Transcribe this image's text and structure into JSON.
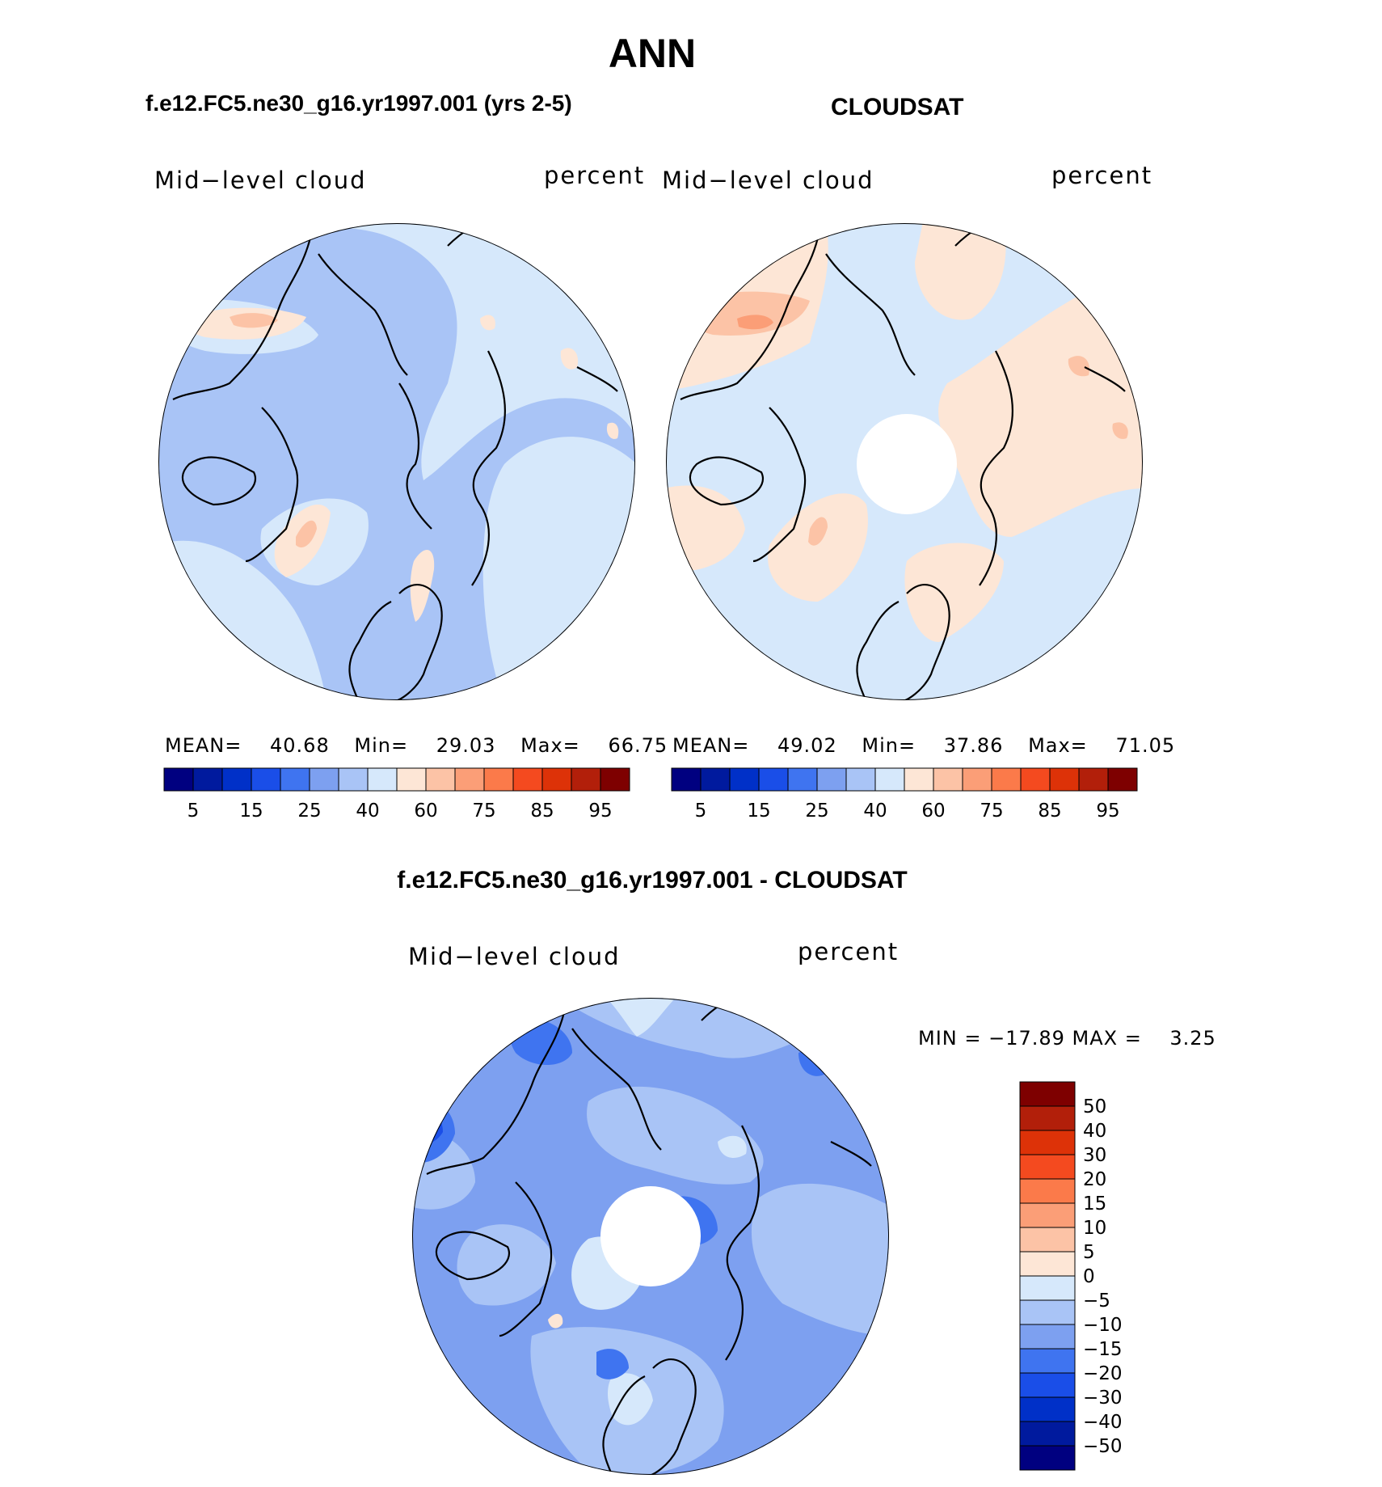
{
  "page_title": "ANN",
  "colors": {
    "seq": [
      "#000080",
      "#001a9e",
      "#0030c8",
      "#1a4ee8",
      "#3f74f0",
      "#7da0f0",
      "#a9c4f6",
      "#d6e8fb",
      "#fde6d6",
      "#fcc3a6",
      "#fb9e77",
      "#fb7a4a",
      "#f44a1f",
      "#dd3208",
      "#b21f0a",
      "#7e0000"
    ],
    "diff": [
      "#000080",
      "#001a9e",
      "#0030c8",
      "#1a4ee8",
      "#3f74f0",
      "#7da0f0",
      "#a9c4f6",
      "#d6e8fb",
      "#fde6d6",
      "#fcc3a6",
      "#fb9e77",
      "#fb7a4a",
      "#f44a1f",
      "#dd3208",
      "#b21f0a",
      "#7e0000"
    ],
    "coast": "#000000",
    "missing": "#ffffff"
  },
  "panels": {
    "model": {
      "title": "f.e12.FC5.ne30_g16.yr1997.001 (yrs 2-5)",
      "left_label": "Mid−level cloud",
      "right_label": "percent",
      "stats": {
        "mean_label": "MEAN=",
        "mean": "40.68",
        "min_label": "Min=",
        "min": "29.03",
        "max_label": "Max=",
        "max": "66.75"
      },
      "colorbar_ticks": [
        "5",
        "15",
        "25",
        "40",
        "60",
        "75",
        "85",
        "95"
      ]
    },
    "obs": {
      "title": "CLOUDSAT",
      "left_label": "Mid−level cloud",
      "right_label": "percent",
      "stats": {
        "mean_label": "MEAN=",
        "mean": "49.02",
        "min_label": "Min=",
        "min": "37.86",
        "max_label": "Max=",
        "max": "71.05"
      },
      "colorbar_ticks": [
        "5",
        "15",
        "25",
        "40",
        "60",
        "75",
        "85",
        "95"
      ]
    },
    "diff": {
      "title": "f.e12.FC5.ne30_g16.yr1997.001 - CLOUDSAT",
      "left_label": "Mid−level cloud",
      "right_label": "percent",
      "minmax_text": "MIN = −17.89 MAX =    3.25",
      "colorbar_ticks": [
        "50",
        "40",
        "30",
        "20",
        "15",
        "10",
        "5",
        "0",
        "−5",
        "−10",
        "−15",
        "−20",
        "−30",
        "−40",
        "−50"
      ]
    }
  }
}
